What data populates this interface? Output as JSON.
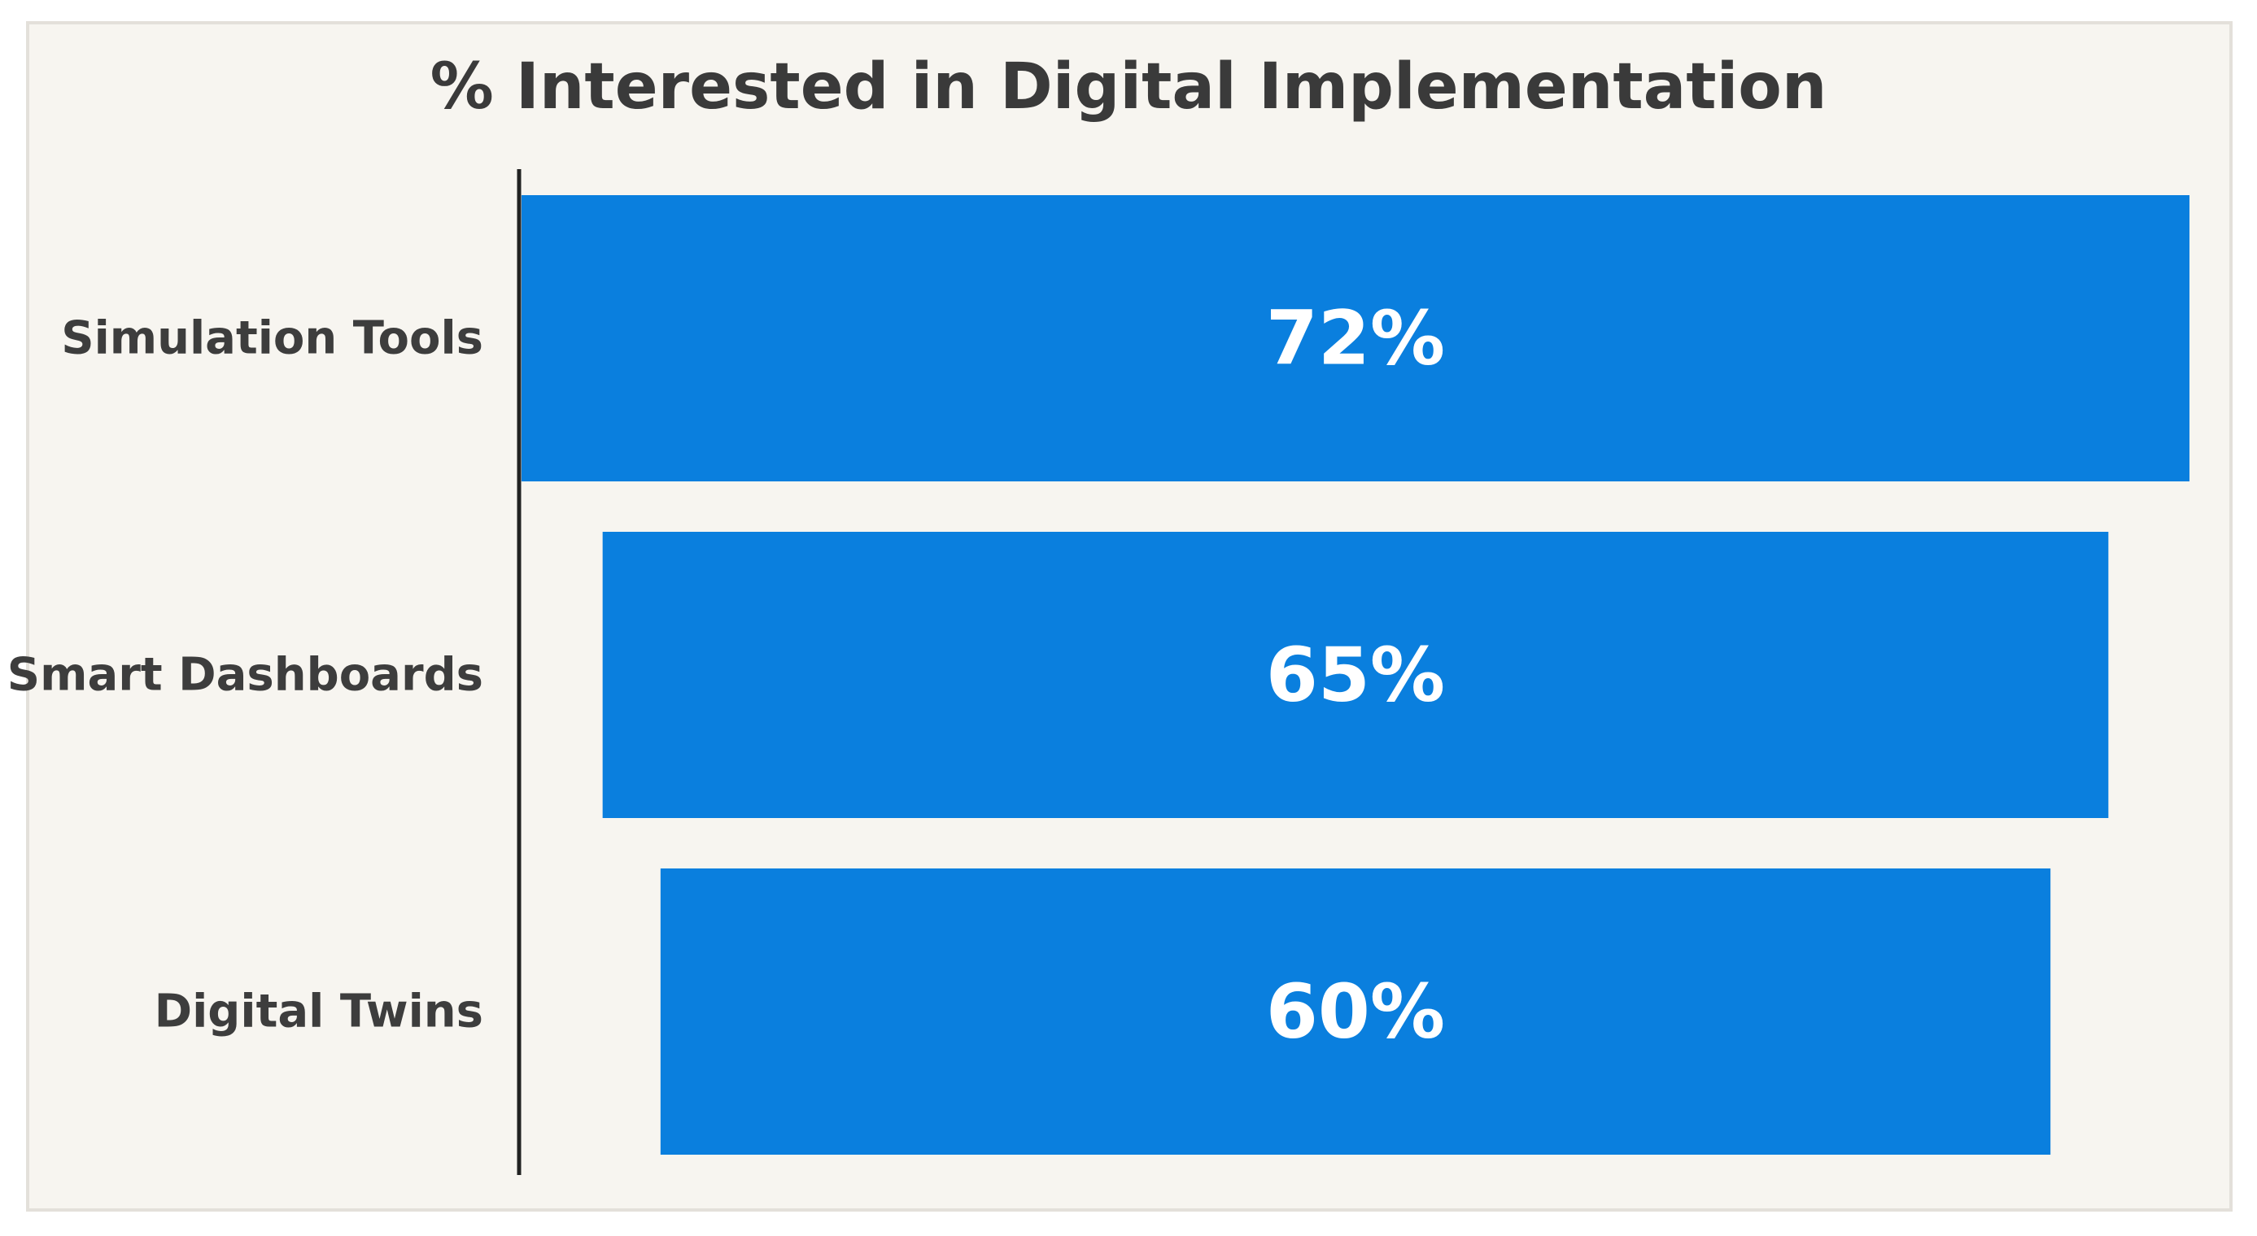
{
  "chart_data": {
    "type": "bar",
    "orientation": "horizontal",
    "style": "funnel",
    "title": "% Interested in Digital Implementation",
    "categories": [
      "Simulation Tools",
      "Smart Dashboards",
      "Digital Twins"
    ],
    "values": [
      72,
      65,
      60
    ],
    "value_labels": [
      "72%",
      "65%",
      "60%"
    ],
    "unit": "%",
    "colors": {
      "bar": "#0a7fde",
      "background": "#f7f5f0",
      "axis": "#222222"
    },
    "grid": false,
    "legend": "none"
  }
}
